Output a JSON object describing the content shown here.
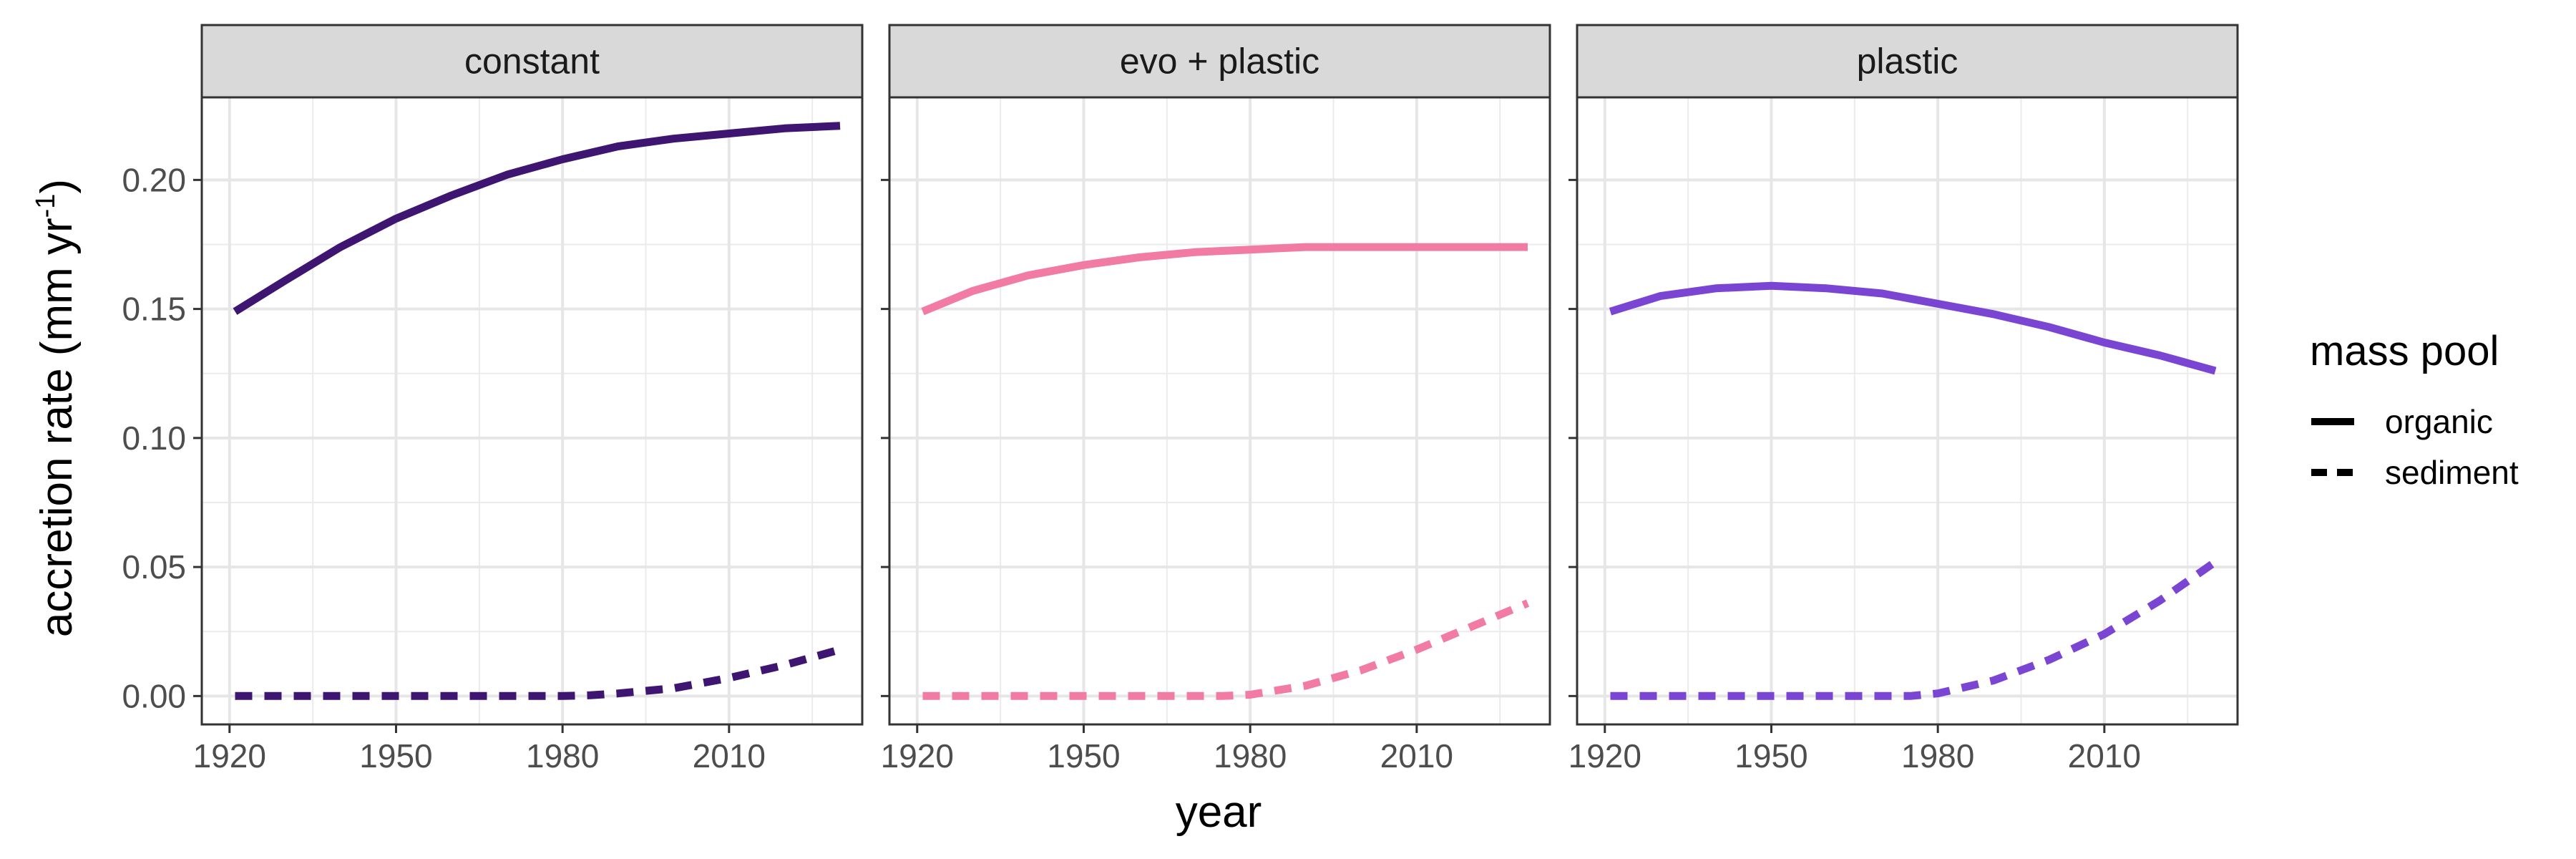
{
  "chart_data": {
    "type": "line",
    "xlabel": "year",
    "ylabel": "accretion rate (mm yr",
    "ylabel_superscript": "-1",
    "ylabel_close": ")",
    "xlim": [
      1915,
      2034
    ],
    "ylim": [
      -0.011,
      0.232
    ],
    "x_ticks": [
      1920,
      1950,
      1980,
      2010
    ],
    "y_ticks": [
      0.0,
      0.05,
      0.1,
      0.15,
      0.2
    ],
    "y_tick_labels": [
      "0.00",
      "0.05",
      "0.10",
      "0.15",
      "0.20"
    ],
    "grid": true,
    "legend": {
      "title": "mass pool",
      "position": "right",
      "entries": [
        {
          "label": "organic",
          "linetype": "solid"
        },
        {
          "label": "sediment",
          "linetype": "dashed"
        }
      ]
    },
    "panels": [
      {
        "title": "constant",
        "color": "#3F1572",
        "series": [
          {
            "name": "organic",
            "linetype": "solid",
            "x": [
              1921,
              1930,
              1940,
              1950,
              1960,
              1970,
              1980,
              1990,
              2000,
              2010,
              2020,
              2030
            ],
            "y": [
              0.149,
              0.161,
              0.174,
              0.185,
              0.194,
              0.202,
              0.208,
              0.213,
              0.216,
              0.218,
              0.22,
              0.221
            ]
          },
          {
            "name": "sediment",
            "linetype": "dashed",
            "x": [
              1921,
              1940,
              1960,
              1980,
              1985,
              1990,
              2000,
              2010,
              2020,
              2030
            ],
            "y": [
              0.0,
              0.0,
              0.0,
              0.0,
              0.0003,
              0.001,
              0.003,
              0.007,
              0.012,
              0.018
            ]
          }
        ]
      },
      {
        "title": "evo + plastic",
        "color": "#F27BA3",
        "series": [
          {
            "name": "organic",
            "linetype": "solid",
            "x": [
              1921,
              1930,
              1940,
              1950,
              1960,
              1970,
              1980,
              1990,
              2000,
              2010,
              2020,
              2030
            ],
            "y": [
              0.149,
              0.157,
              0.163,
              0.167,
              0.17,
              0.172,
              0.173,
              0.174,
              0.174,
              0.174,
              0.174,
              0.174
            ]
          },
          {
            "name": "sediment",
            "linetype": "dashed",
            "x": [
              1921,
              1940,
              1960,
              1975,
              1980,
              1990,
              2000,
              2010,
              2020,
              2030
            ],
            "y": [
              0.0,
              0.0,
              0.0,
              0.0,
              0.0005,
              0.004,
              0.01,
              0.018,
              0.027,
              0.036
            ]
          }
        ]
      },
      {
        "title": "plastic",
        "color": "#7B45D3",
        "series": [
          {
            "name": "organic",
            "linetype": "solid",
            "x": [
              1921,
              1930,
              1940,
              1950,
              1960,
              1970,
              1980,
              1990,
              2000,
              2010,
              2020,
              2030
            ],
            "y": [
              0.149,
              0.155,
              0.158,
              0.159,
              0.158,
              0.156,
              0.152,
              0.148,
              0.143,
              0.137,
              0.132,
              0.126
            ]
          },
          {
            "name": "sediment",
            "linetype": "dashed",
            "x": [
              1921,
              1940,
              1960,
              1975,
              1980,
              1990,
              2000,
              2010,
              2020,
              2030
            ],
            "y": [
              0.0,
              0.0,
              0.0,
              0.0,
              0.001,
              0.006,
              0.014,
              0.024,
              0.037,
              0.052
            ]
          }
        ]
      }
    ]
  }
}
